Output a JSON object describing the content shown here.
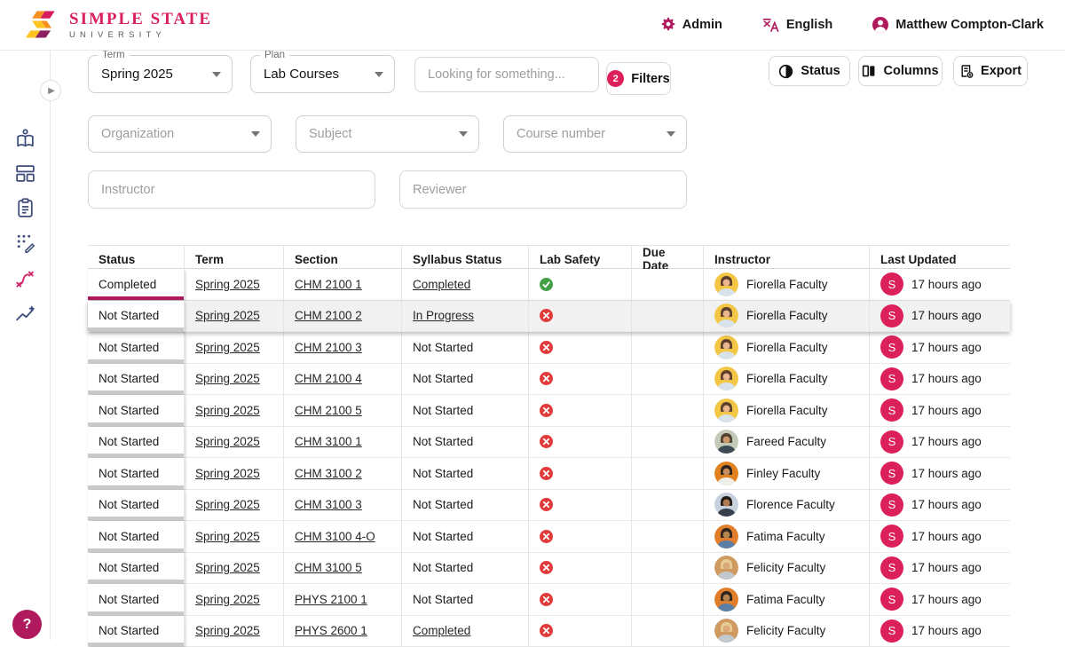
{
  "colors": {
    "pink": "#b0195e",
    "pink_bright": "#dc2059",
    "logo_pink": "#d91f5c",
    "navy": "#3f4d7c",
    "green": "#43a047",
    "red": "#e23b3b"
  },
  "header": {
    "logo_title": "SIMPLE STATE",
    "logo_subtitle": "UNIVERSITY",
    "admin_label": "Admin",
    "language_label": "English",
    "user_name": "Matthew Compton-Clark"
  },
  "sidebar": {
    "items": [
      "book-reader-icon",
      "dashboard-icon",
      "clipboard-icon",
      "edit-grid-icon",
      "route-icon",
      "analytics-icon"
    ],
    "active_item": "route-icon"
  },
  "filters": {
    "term": {
      "label": "Term",
      "value": "Spring 2025"
    },
    "plan": {
      "label": "Plan",
      "value": "Lab Courses"
    },
    "search_placeholder": "Looking for something...",
    "filters_button": {
      "label": "Filters",
      "badge": "2"
    },
    "organization_placeholder": "Organization",
    "subject_placeholder": "Subject",
    "course_number_placeholder": "Course number",
    "instructor_placeholder": "Instructor",
    "reviewer_placeholder": "Reviewer"
  },
  "toolbar": {
    "status_label": "Status",
    "columns_label": "Columns",
    "export_label": "Export"
  },
  "help_label": "?",
  "table": {
    "columns": [
      "Status",
      "Term",
      "Section",
      "Syllabus Status",
      "Lab Safety",
      "Due Date",
      "Instructor",
      "Last Updated"
    ],
    "rows": [
      {
        "status": "Completed",
        "progress": "complete",
        "term": "Spring 2025",
        "section": "CHM 2100 1",
        "syllabus": "Completed",
        "syllabus_link": true,
        "lab_safety": "Yes",
        "due_date": "",
        "instructor": "Fiorella Faculty",
        "updated_by": "S",
        "last_updated": "17 hours ago",
        "highlighted": false,
        "avatar": {
          "bg": "#f3c645",
          "hair": "#5e3f2c",
          "skin": "#e9b68f",
          "shirt": "#d8e2ea"
        }
      },
      {
        "status": "Not Started",
        "progress": "none",
        "term": "Spring 2025",
        "section": "CHM 2100 2",
        "syllabus": "In Progress",
        "syllabus_link": true,
        "lab_safety": "No",
        "due_date": "",
        "instructor": "Fiorella Faculty",
        "updated_by": "S",
        "last_updated": "17 hours ago",
        "highlighted": true,
        "avatar": {
          "bg": "#f3c645",
          "hair": "#5e3f2c",
          "skin": "#e9b68f",
          "shirt": "#d8e2ea"
        }
      },
      {
        "status": "Not Started",
        "progress": "none",
        "term": "Spring 2025",
        "section": "CHM 2100 3",
        "syllabus": "Not Started",
        "syllabus_link": false,
        "lab_safety": "No",
        "due_date": "",
        "instructor": "Fiorella Faculty",
        "updated_by": "S",
        "last_updated": "17 hours ago",
        "highlighted": false,
        "avatar": {
          "bg": "#f3c645",
          "hair": "#5e3f2c",
          "skin": "#e9b68f",
          "shirt": "#d8e2ea"
        }
      },
      {
        "status": "Not Started",
        "progress": "none",
        "term": "Spring 2025",
        "section": "CHM 2100 4",
        "syllabus": "Not Started",
        "syllabus_link": false,
        "lab_safety": "No",
        "due_date": "",
        "instructor": "Fiorella Faculty",
        "updated_by": "S",
        "last_updated": "17 hours ago",
        "highlighted": false,
        "avatar": {
          "bg": "#f3c645",
          "hair": "#5e3f2c",
          "skin": "#e9b68f",
          "shirt": "#d8e2ea"
        }
      },
      {
        "status": "Not Started",
        "progress": "none",
        "term": "Spring 2025",
        "section": "CHM 2100 5",
        "syllabus": "Not Started",
        "syllabus_link": false,
        "lab_safety": "No",
        "due_date": "",
        "instructor": "Fiorella Faculty",
        "updated_by": "S",
        "last_updated": "17 hours ago",
        "highlighted": false,
        "avatar": {
          "bg": "#f3c645",
          "hair": "#5e3f2c",
          "skin": "#e9b68f",
          "shirt": "#d8e2ea"
        }
      },
      {
        "status": "Not Started",
        "progress": "none",
        "term": "Spring 2025",
        "section": "CHM 3100 1",
        "syllabus": "Not Started",
        "syllabus_link": false,
        "lab_safety": "No",
        "due_date": "",
        "instructor": "Fareed Faculty",
        "updated_by": "S",
        "last_updated": "17 hours ago",
        "highlighted": false,
        "avatar": {
          "bg": "#c3cbb8",
          "hair": "#50402f",
          "skin": "#c9996b",
          "shirt": "#3e4a54"
        }
      },
      {
        "status": "Not Started",
        "progress": "none",
        "term": "Spring 2025",
        "section": "CHM 3100 2",
        "syllabus": "Not Started",
        "syllabus_link": false,
        "lab_safety": "No",
        "due_date": "",
        "instructor": "Finley Faculty",
        "updated_by": "S",
        "last_updated": "17 hours ago",
        "highlighted": false,
        "avatar": {
          "bg": "#e08220",
          "hair": "#2b241e",
          "skin": "#c68b5e",
          "shirt": "#f0eee8"
        }
      },
      {
        "status": "Not Started",
        "progress": "none",
        "term": "Spring 2025",
        "section": "CHM 3100 3",
        "syllabus": "Not Started",
        "syllabus_link": false,
        "lab_safety": "No",
        "due_date": "",
        "instructor": "Florence Faculty",
        "updated_by": "S",
        "last_updated": "17 hours ago",
        "highlighted": false,
        "avatar": {
          "bg": "#c8d1de",
          "hair": "#241c19",
          "skin": "#b27c50",
          "shirt": "#36404d"
        }
      },
      {
        "status": "Not Started",
        "progress": "none",
        "term": "Spring 2025",
        "section": "CHM 3100 4-O",
        "syllabus": "Not Started",
        "syllabus_link": false,
        "lab_safety": "No",
        "due_date": "",
        "instructor": "Fatima Faculty",
        "updated_by": "S",
        "last_updated": "17 hours ago",
        "highlighted": false,
        "avatar": {
          "bg": "#e07e2c",
          "hair": "#2f231d",
          "skin": "#b5854f",
          "shirt": "#5b7fa6"
        }
      },
      {
        "status": "Not Started",
        "progress": "none",
        "term": "Spring 2025",
        "section": "CHM 3100 5",
        "syllabus": "Not Started",
        "syllabus_link": false,
        "lab_safety": "No",
        "due_date": "",
        "instructor": "Felicity Faculty",
        "updated_by": "S",
        "last_updated": "17 hours ago",
        "highlighted": false,
        "avatar": {
          "bg": "#cf9a60",
          "hair": "#e8cd92",
          "skin": "#dba87c",
          "shirt": "#c2c8ce"
        }
      },
      {
        "status": "Not Started",
        "progress": "none",
        "term": "Spring 2025",
        "section": "PHYS 2100 1",
        "syllabus": "Not Started",
        "syllabus_link": false,
        "lab_safety": "No",
        "due_date": "",
        "instructor": "Fatima Faculty",
        "updated_by": "S",
        "last_updated": "17 hours ago",
        "highlighted": false,
        "avatar": {
          "bg": "#e07e2c",
          "hair": "#2f231d",
          "skin": "#b5854f",
          "shirt": "#5b7fa6"
        }
      },
      {
        "status": "Not Started",
        "progress": "none",
        "term": "Spring 2025",
        "section": "PHYS 2600 1",
        "syllabus": "Completed",
        "syllabus_link": true,
        "lab_safety": "No",
        "due_date": "",
        "instructor": "Felicity Faculty",
        "updated_by": "S",
        "last_updated": "17 hours ago",
        "highlighted": false,
        "avatar": {
          "bg": "#cf9a60",
          "hair": "#e8cd92",
          "skin": "#dba87c",
          "shirt": "#c2c8ce"
        }
      }
    ]
  }
}
